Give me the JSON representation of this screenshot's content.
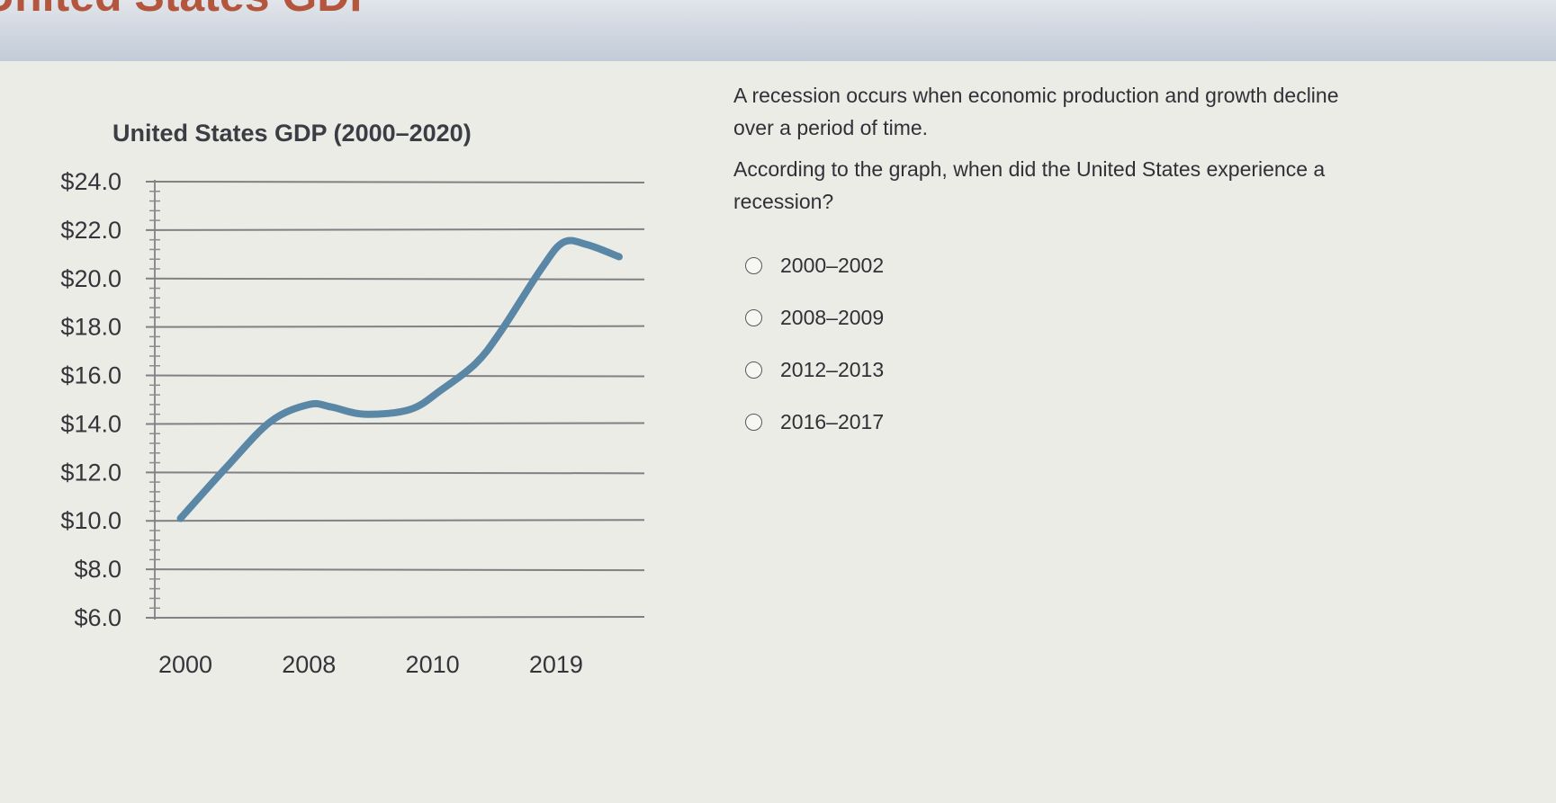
{
  "header": {
    "title": "United States GDP"
  },
  "chart_data": {
    "type": "line",
    "title": "United States GDP (2000–2020)",
    "xlabel": "",
    "ylabel": "",
    "x_ticks": [
      "2000",
      "2008",
      "2010",
      "2019"
    ],
    "y_ticks": [
      "$24.0",
      "$22.0",
      "$20.0",
      "$18.0",
      "$16.0",
      "$14.0",
      "$12.0",
      "$10.0",
      "$8.0",
      "$6.0"
    ],
    "ylim": [
      6,
      24
    ],
    "grid": true,
    "line_color": "#5b87a6",
    "series": [
      {
        "x_tick_position": [
          -0.04,
          0.33,
          0.69,
          1.0,
          1.18,
          1.45,
          1.82,
          2.07,
          2.35,
          2.55,
          2.88,
          3.06,
          3.25,
          3.51
        ],
        "values": [
          10.1,
          12.2,
          14.1,
          14.8,
          14.7,
          14.4,
          14.6,
          15.4,
          16.5,
          17.8,
          20.4,
          21.5,
          21.4,
          20.9
        ]
      }
    ]
  },
  "question": {
    "intro": "A recession occurs when economic production and growth decline over a period of time.",
    "prompt": "According to the graph, when did the United States experience a recession?",
    "options": [
      "2000–2002",
      "2008–2009",
      "2012–2013",
      "2016–2017"
    ]
  }
}
